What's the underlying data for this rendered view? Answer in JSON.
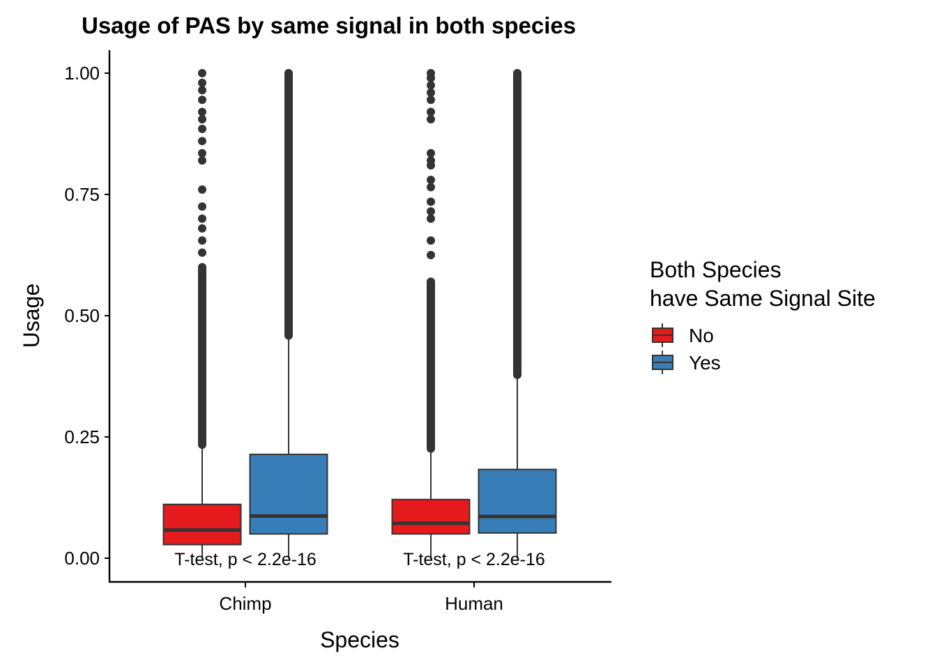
{
  "chart_data": {
    "type": "boxplot",
    "title": "Usage of PAS by same signal in both species",
    "xlabel": "Species",
    "ylabel": "Usage",
    "categories": [
      "Chimp",
      "Human"
    ],
    "yticks": [
      "0.00",
      "0.25",
      "0.50",
      "0.75",
      "1.00"
    ],
    "ytick_values": [
      0,
      0.25,
      0.5,
      0.75,
      1.0
    ],
    "ylim": [
      -0.048,
      1.048
    ],
    "grid": false,
    "legend": {
      "title_line1": "Both Species",
      "title_line2": "have Same Signal Site",
      "placement": "right"
    },
    "series": [
      {
        "name": "No",
        "color": "#E41A1C",
        "boxes": [
          {
            "category": "Chimp",
            "min": 0.0,
            "q1": 0.028,
            "median": 0.058,
            "q3": 0.111,
            "whisker_high": 0.234,
            "outliers_dense": [
              0.234,
              0.6
            ],
            "outliers": [
              0.63,
              0.655,
              0.68,
              0.7,
              0.725,
              0.76,
              0.82,
              0.835,
              0.86,
              0.885,
              0.905,
              0.92,
              0.945,
              0.965,
              0.98,
              1.0
            ]
          },
          {
            "category": "Human",
            "min": 0.0,
            "q1": 0.05,
            "median": 0.072,
            "q3": 0.121,
            "whisker_high": 0.226,
            "outliers_dense": [
              0.226,
              0.57
            ],
            "outliers": [
              0.625,
              0.655,
              0.7,
              0.715,
              0.735,
              0.765,
              0.78,
              0.81,
              0.82,
              0.835,
              0.905,
              0.92,
              0.945,
              0.96,
              0.975,
              0.99,
              1.0
            ]
          }
        ]
      },
      {
        "name": "Yes",
        "color": "#377EB8",
        "boxes": [
          {
            "category": "Chimp",
            "min": 0.0,
            "q1": 0.05,
            "median": 0.087,
            "q3": 0.214,
            "whisker_high": 0.459,
            "outliers_dense": [
              0.459,
              1.0
            ],
            "outliers": []
          },
          {
            "category": "Human",
            "min": 0.0,
            "q1": 0.052,
            "median": 0.086,
            "q3": 0.183,
            "whisker_high": 0.378,
            "outliers_dense": [
              0.378,
              1.0
            ],
            "outliers": []
          }
        ]
      }
    ],
    "annotations": [
      {
        "category": "Chimp",
        "text": "T-test, p < 2.2e-16",
        "y": 0.0
      },
      {
        "category": "Human",
        "text": "T-test, p < 2.2e-16",
        "y": 0.0
      }
    ]
  }
}
